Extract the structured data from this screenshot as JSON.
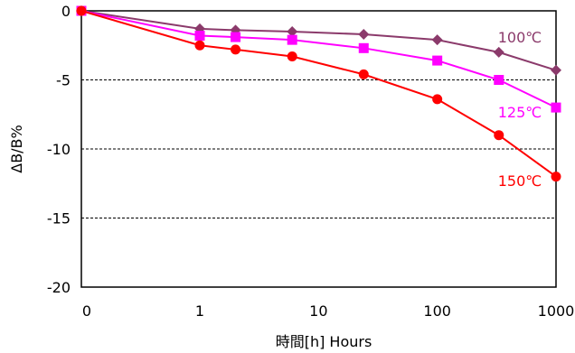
{
  "chart_data": {
    "type": "line",
    "title": "",
    "xlabel": "時間[h]   Hours",
    "ylabel": "ΔB/B%",
    "xscale": "log (0 at origin)",
    "x_ticks": [
      "0",
      "1",
      "10",
      "100",
      "1000"
    ],
    "y_ticks": [
      "0",
      "-5",
      "-10",
      "-15",
      "-20"
    ],
    "ylim": [
      -20,
      0
    ],
    "grid": "horizontal dashed at -5, -10, -15",
    "legend": "inline labels at right end of each series",
    "series": [
      {
        "name": "100℃",
        "color": "#8B3A6B",
        "marker": "diamond",
        "x": [
          0,
          1,
          2,
          6,
          24,
          100,
          330,
          1000
        ],
        "y": [
          0,
          -1.3,
          -1.4,
          -1.5,
          -1.7,
          -2.1,
          -3.0,
          -4.3
        ]
      },
      {
        "name": "125℃",
        "color": "#FF00FF",
        "marker": "square",
        "x": [
          0,
          1,
          2,
          6,
          24,
          100,
          330,
          1000
        ],
        "y": [
          0,
          -1.8,
          -1.9,
          -2.1,
          -2.7,
          -3.6,
          -5.0,
          -7.0
        ]
      },
      {
        "name": "150℃",
        "color": "#FF0000",
        "marker": "circle",
        "x": [
          0,
          1,
          2,
          6,
          24,
          100,
          330,
          1000
        ],
        "y": [
          0,
          -2.5,
          -2.8,
          -3.3,
          -4.6,
          -6.4,
          -9.0,
          -12.0
        ]
      }
    ]
  }
}
